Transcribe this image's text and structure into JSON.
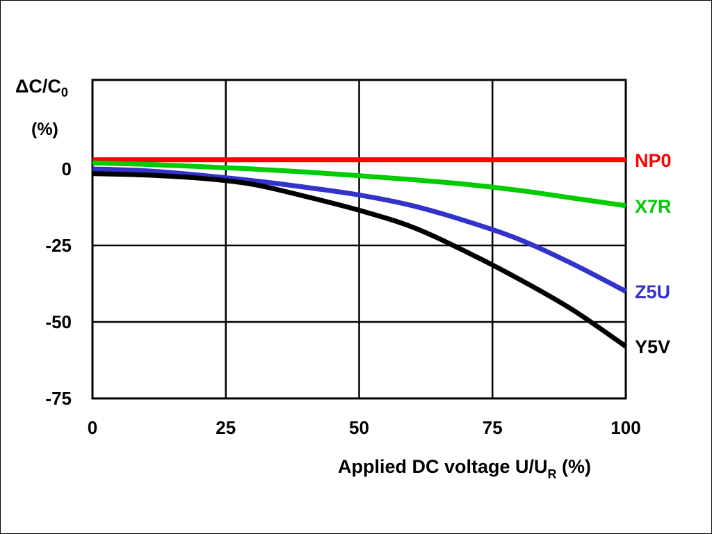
{
  "chart_data": {
    "type": "line",
    "ylabel_main": "ΔC/C",
    "ylabel_sub": "0",
    "ylabel_unit": "(%)",
    "xlabel_main": "Applied DC voltage U/U",
    "xlabel_sub": "R",
    "xlabel_unit": " (%)",
    "xlim": [
      0,
      100
    ],
    "ylim": [
      -75,
      0
    ],
    "x_ticks": [
      0,
      25,
      50,
      75,
      100
    ],
    "y_ticks": [
      0,
      -25,
      -50,
      -75
    ],
    "x_tick_labels": [
      "0",
      "25",
      "50",
      "75",
      "100"
    ],
    "y_tick_labels": [
      "0",
      "-25",
      "-50",
      "-75"
    ],
    "grid": true,
    "legend": "inline-right",
    "series": [
      {
        "name": "NP0",
        "color": "#ff0000",
        "x": [
          0,
          10,
          20,
          30,
          40,
          50,
          60,
          70,
          80,
          90,
          100
        ],
        "y": [
          3,
          3,
          3,
          3,
          3,
          3,
          3,
          3,
          3,
          3,
          3
        ]
      },
      {
        "name": "X7R",
        "color": "#00cc00",
        "x": [
          0,
          10,
          20,
          30,
          40,
          50,
          60,
          70,
          80,
          90,
          100
        ],
        "y": [
          2,
          1.5,
          0.8,
          0,
          -1,
          -2.2,
          -3.5,
          -5,
          -7,
          -9.5,
          -12
        ]
      },
      {
        "name": "Z5U",
        "color": "#3333cc",
        "x": [
          0,
          10,
          20,
          30,
          40,
          50,
          60,
          70,
          80,
          90,
          100
        ],
        "y": [
          0,
          -0.6,
          -2,
          -3.8,
          -6,
          -8.5,
          -12,
          -17,
          -23,
          -31,
          -40
        ]
      },
      {
        "name": "Y5V",
        "color": "#000000",
        "x": [
          0,
          10,
          20,
          30,
          40,
          50,
          60,
          70,
          80,
          90,
          100
        ],
        "y": [
          -1.5,
          -2,
          -3,
          -5,
          -9,
          -13.5,
          -19,
          -27,
          -36,
          -46,
          -58
        ]
      }
    ]
  }
}
